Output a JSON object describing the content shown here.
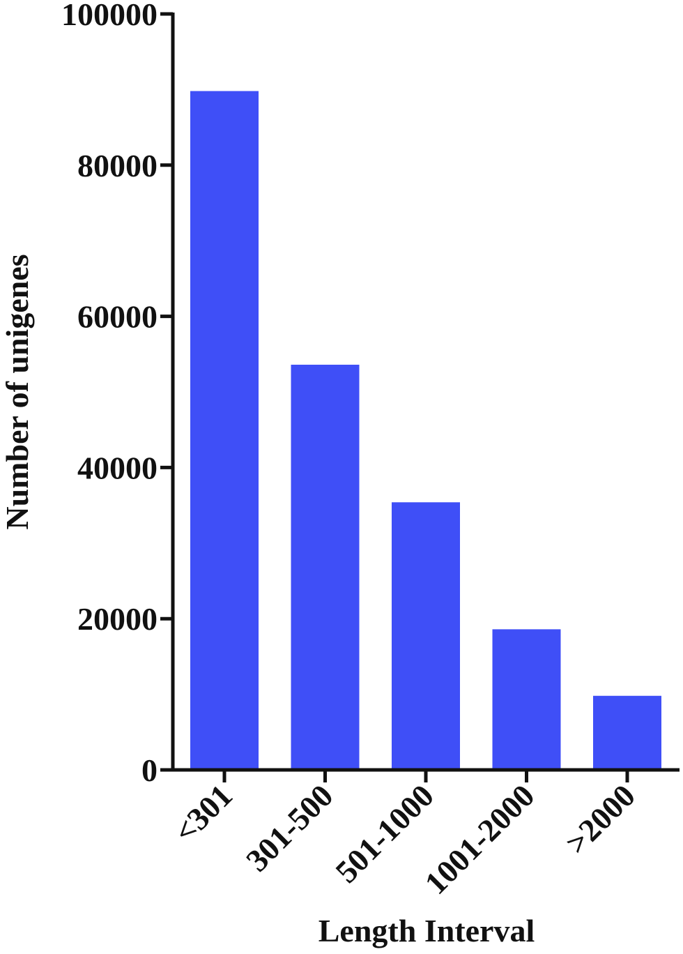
{
  "chart_data": {
    "type": "bar",
    "categories": [
      "<301",
      "301-500",
      "501-1000",
      "1001-2000",
      ">2000"
    ],
    "values": [
      89800,
      53600,
      35400,
      18600,
      9800
    ],
    "xlabel": "Length Interval",
    "ylabel": "Number of unigenes",
    "ylim": [
      0,
      100000
    ],
    "yticks": [
      "0",
      "20000",
      "40000",
      "60000",
      "80000",
      "100000"
    ],
    "grid": false,
    "bar_color": "#3f4ff7"
  }
}
